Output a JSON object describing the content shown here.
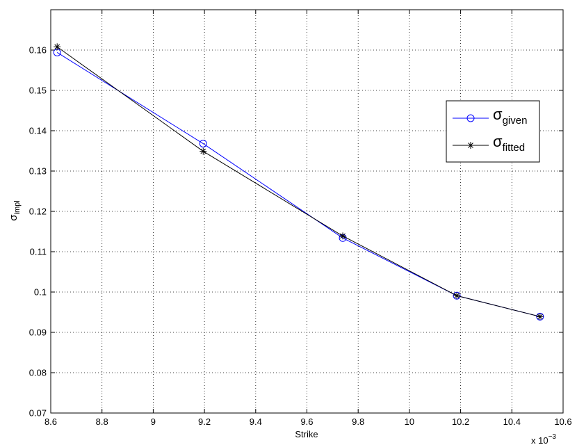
{
  "chart_data": {
    "type": "line",
    "xlabel": "Strike",
    "x_multiplier": "x 10",
    "x_multiplier_exp": "−3",
    "ylabel": {
      "base": "σ",
      "sub": "impl"
    },
    "xlim": [
      8.6,
      10.6
    ],
    "ylim": [
      0.07,
      0.17
    ],
    "xticks": [
      8.6,
      8.8,
      9.0,
      9.2,
      9.4,
      9.6,
      9.8,
      10.0,
      10.2,
      10.4,
      10.6
    ],
    "xtick_labels": [
      "8.6",
      "8.8",
      "9",
      "9.2",
      "9.4",
      "9.6",
      "9.8",
      "10",
      "10.2",
      "10.4",
      "10.6"
    ],
    "yticks": [
      0.07,
      0.08,
      0.09,
      0.1,
      0.11,
      0.12,
      0.13,
      0.14,
      0.15,
      0.16
    ],
    "ytick_labels": [
      "0.07",
      "0.08",
      "0.09",
      "0.1",
      "0.11",
      "0.12",
      "0.13",
      "0.14",
      "0.15",
      "0.16"
    ],
    "grid": true,
    "legend_position": "right",
    "series": [
      {
        "name": {
          "base": "σ",
          "sub": "given"
        },
        "color": "#0000ff",
        "marker": "circle",
        "x": [
          8.625,
          9.195,
          9.74,
          10.185,
          10.51
        ],
        "y": [
          0.1594,
          0.1368,
          0.1134,
          0.0991,
          0.0939
        ]
      },
      {
        "name": {
          "base": "σ",
          "sub": "fitted"
        },
        "color": "#000000",
        "marker": "asterisk",
        "x": [
          8.625,
          9.195,
          9.74,
          10.185,
          10.51
        ],
        "y": [
          0.1608,
          0.1349,
          0.1139,
          0.0991,
          0.0939
        ]
      }
    ]
  }
}
